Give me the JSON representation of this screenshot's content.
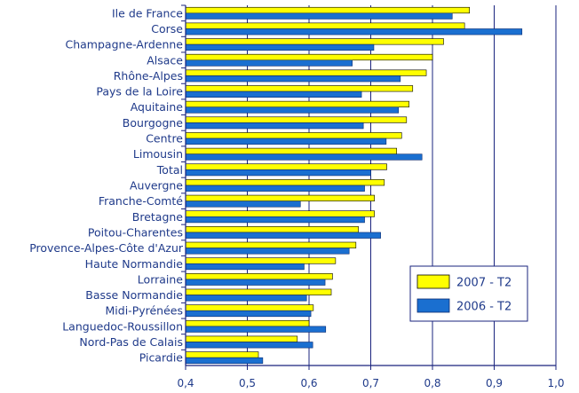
{
  "chart_data": {
    "type": "bar",
    "orientation": "horizontal",
    "title": "",
    "xlabel": "",
    "ylabel": "",
    "xlim": [
      0.4,
      1.0
    ],
    "xticks": [
      "0,4",
      "0,5",
      "0,6",
      "0,7",
      "0,8",
      "0,9",
      "1,0"
    ],
    "grid": true,
    "legend_position": "right",
    "categories": [
      "Ile de France",
      "Corse",
      "Champagne-Ardenne",
      "Alsace",
      "Rhône-Alpes",
      "Pays de la Loire",
      "Aquitaine",
      "Bourgogne",
      "Centre",
      "Limousin",
      "Total",
      "Auvergne",
      "Franche-Comté",
      "Bretagne",
      "Poitou-Charentes",
      "Provence-Alpes-Côte d'Azur",
      "Haute Normandie",
      "Lorraine",
      "Basse Normandie",
      "Midi-Pyrénées",
      "Languedoc-Roussillon",
      "Nord-Pas de Calais",
      "Picardie"
    ],
    "series": [
      {
        "name": "2007 - T2",
        "color": "#ffff00",
        "values": [
          0.86,
          0.852,
          0.818,
          0.8,
          0.79,
          0.768,
          0.762,
          0.758,
          0.75,
          0.742,
          0.726,
          0.722,
          0.706,
          0.706,
          0.68,
          0.676,
          0.643,
          0.638,
          0.636,
          0.607,
          0.6,
          0.581,
          0.518
        ]
      },
      {
        "name": "2006 - T2",
        "color": "#1a6fd0",
        "values": [
          0.832,
          0.945,
          0.705,
          0.67,
          0.748,
          0.685,
          0.745,
          0.688,
          0.725,
          0.783,
          0.7,
          0.69,
          0.586,
          0.69,
          0.716,
          0.665,
          0.592,
          0.626,
          0.596,
          0.603,
          0.627,
          0.606,
          0.525
        ]
      }
    ]
  }
}
